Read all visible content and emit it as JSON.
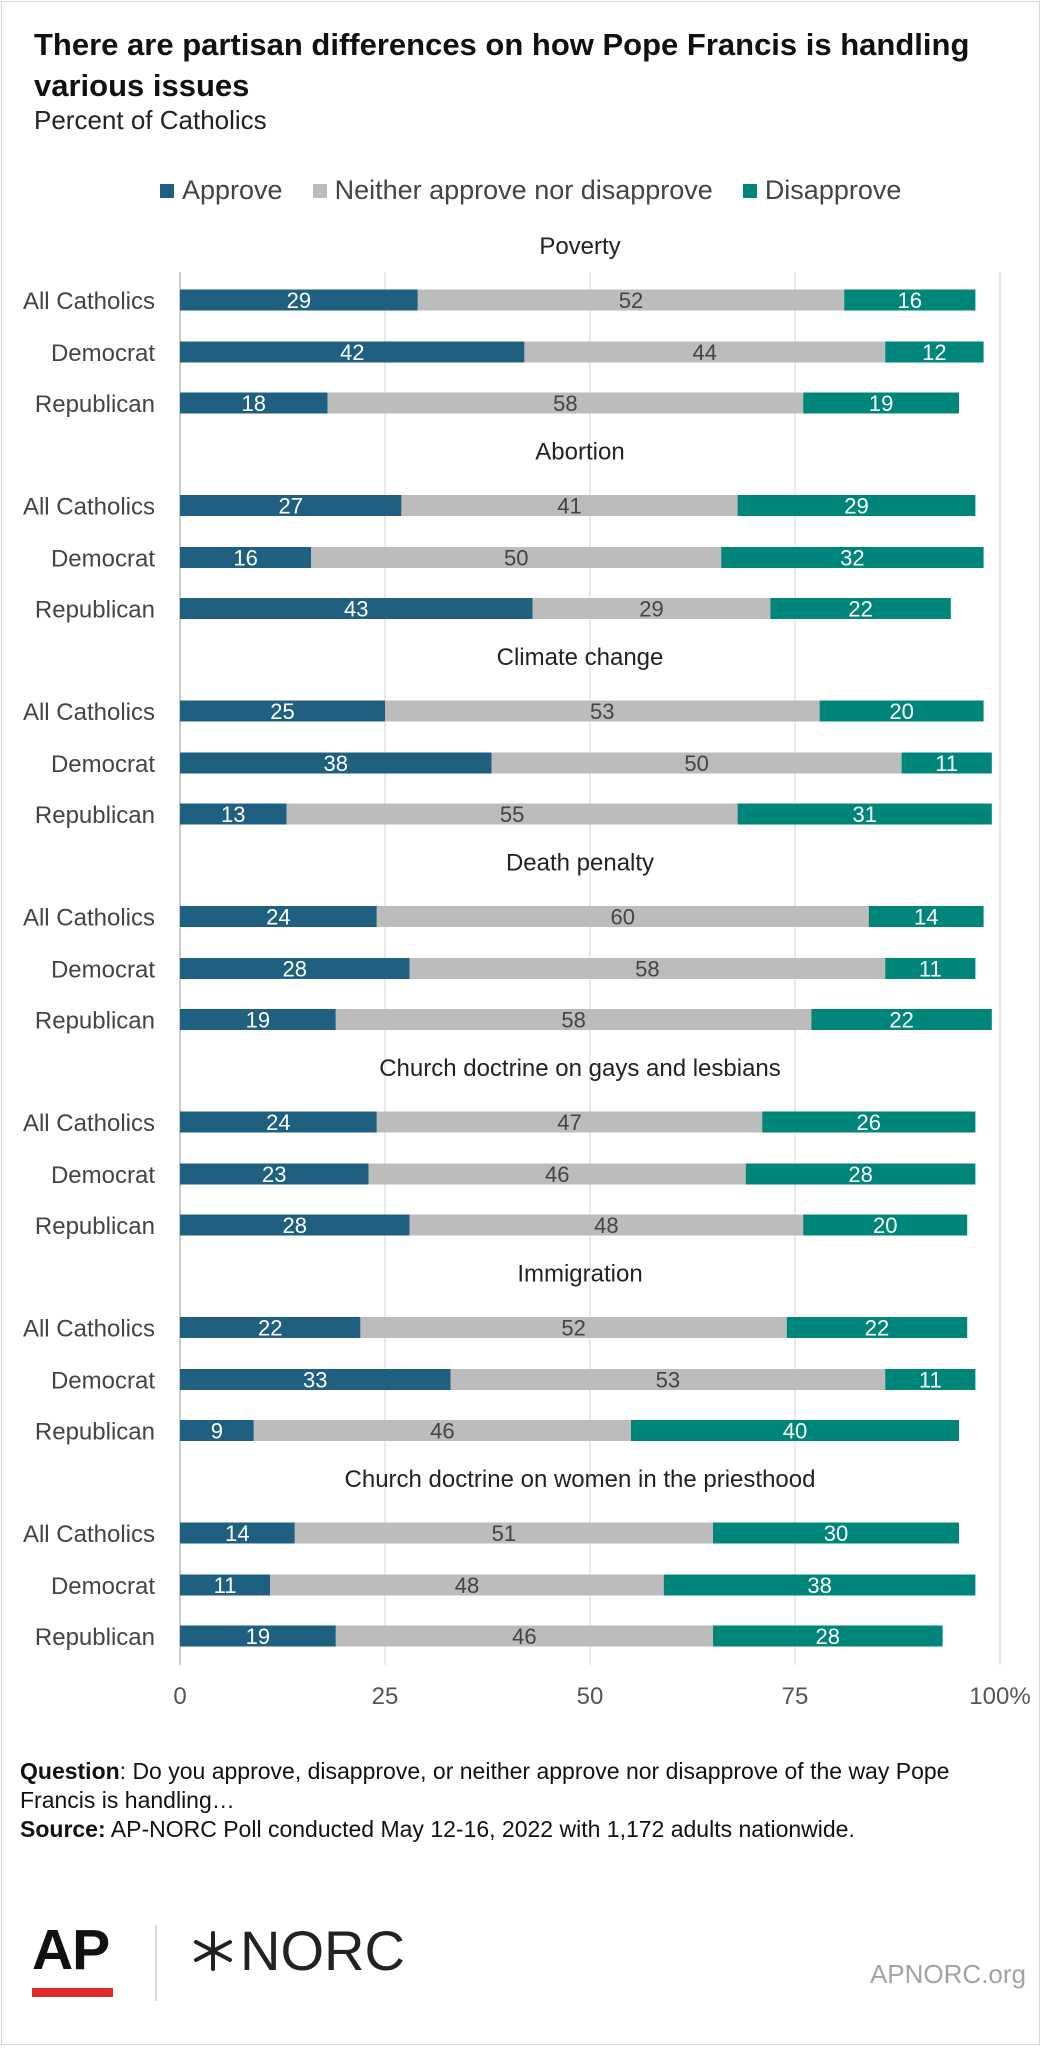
{
  "header": {
    "title": "There are partisan differences on how Pope Francis is handling various issues",
    "subtitle": "Percent of Catholics"
  },
  "legend": [
    {
      "label": "Approve",
      "color": "#1f5f7f"
    },
    {
      "label": "Neither approve nor disapprove",
      "color": "#bcbcbc"
    },
    {
      "label": "Disapprove",
      "color": "#00857a"
    }
  ],
  "chart_data": {
    "type": "bar",
    "orientation": "horizontal",
    "stacked": true,
    "xlim": [
      0,
      100
    ],
    "x_ticks": [
      "0",
      "25",
      "50",
      "75",
      "100%"
    ],
    "grid": true,
    "legend_position": "top",
    "series": [
      {
        "name": "Approve",
        "color": "#1f5f7f"
      },
      {
        "name": "Neither approve nor disapprove",
        "color": "#bcbcbc"
      },
      {
        "name": "Disapprove",
        "color": "#00857a"
      }
    ],
    "groups": [
      {
        "name": "Poverty",
        "rows": [
          {
            "label": "All Catholics",
            "values": [
              29,
              52,
              16
            ]
          },
          {
            "label": "Democrat",
            "values": [
              42,
              44,
              12
            ]
          },
          {
            "label": "Republican",
            "values": [
              18,
              58,
              19
            ]
          }
        ]
      },
      {
        "name": "Abortion",
        "rows": [
          {
            "label": "All Catholics",
            "values": [
              27,
              41,
              29
            ]
          },
          {
            "label": "Democrat",
            "values": [
              16,
              50,
              32
            ]
          },
          {
            "label": "Republican",
            "values": [
              43,
              29,
              22
            ]
          }
        ]
      },
      {
        "name": "Climate change",
        "rows": [
          {
            "label": "All Catholics",
            "values": [
              25,
              53,
              20
            ]
          },
          {
            "label": "Democrat",
            "values": [
              38,
              50,
              11
            ]
          },
          {
            "label": "Republican",
            "values": [
              13,
              55,
              31
            ]
          }
        ]
      },
      {
        "name": "Death penalty",
        "rows": [
          {
            "label": "All Catholics",
            "values": [
              24,
              60,
              14
            ]
          },
          {
            "label": "Democrat",
            "values": [
              28,
              58,
              11
            ]
          },
          {
            "label": "Republican",
            "values": [
              19,
              58,
              22
            ]
          }
        ]
      },
      {
        "name": "Church doctrine on gays and lesbians",
        "rows": [
          {
            "label": "All Catholics",
            "values": [
              24,
              47,
              26
            ]
          },
          {
            "label": "Democrat",
            "values": [
              23,
              46,
              28
            ]
          },
          {
            "label": "Republican",
            "values": [
              28,
              48,
              20
            ]
          }
        ]
      },
      {
        "name": "Immigration",
        "rows": [
          {
            "label": "All Catholics",
            "values": [
              22,
              52,
              22
            ]
          },
          {
            "label": "Democrat",
            "values": [
              33,
              53,
              11
            ]
          },
          {
            "label": "Republican",
            "values": [
              9,
              46,
              40
            ]
          }
        ]
      },
      {
        "name": "Church doctrine on women in the priesthood",
        "rows": [
          {
            "label": "All Catholics",
            "values": [
              14,
              51,
              30
            ]
          },
          {
            "label": "Democrat",
            "values": [
              11,
              48,
              38
            ]
          },
          {
            "label": "Republican",
            "values": [
              19,
              46,
              28
            ]
          }
        ]
      }
    ]
  },
  "notes": {
    "question_label": "Question",
    "question_text": ": Do you approve, disapprove, or neither approve nor disapprove of the way Pope Francis is handling…",
    "source_label": "Source:",
    "source_text": " AP-NORC Poll conducted May 12-16, 2022 with 1,172 adults nationwide."
  },
  "footer": {
    "logo_ap": "AP",
    "logo_norc": "NORC",
    "site": "APNORC.org"
  }
}
